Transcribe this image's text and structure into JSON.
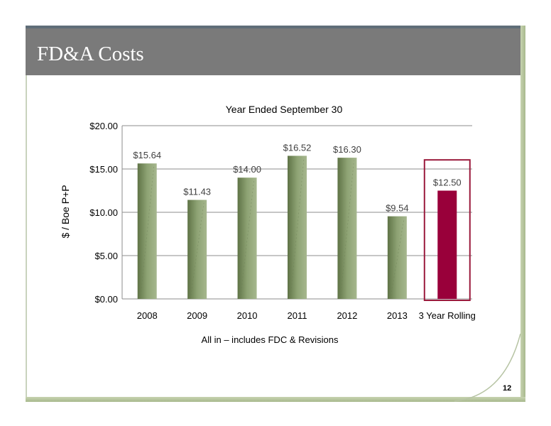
{
  "slide": {
    "title": "FD&A Costs",
    "page_number": "12",
    "note": "All in – includes FDC & Revisions"
  },
  "colors": {
    "title_bar": "#7a7a7a",
    "bar_green": "#7f9566",
    "bar_highlight": "#99003a",
    "highlight_box": "#9a1a3c"
  },
  "chart_data": {
    "type": "bar",
    "title": "Year Ended September 30",
    "ylabel": "$ / Boe P+P",
    "xlabel": "",
    "categories": [
      "2008",
      "2009",
      "2010",
      "2011",
      "2012",
      "2013",
      "3 Year Rolling"
    ],
    "values": [
      15.64,
      11.43,
      14.0,
      16.52,
      16.3,
      9.54,
      12.5
    ],
    "data_labels": [
      "$15.64",
      "$11.43",
      "$14.00",
      "$16.52",
      "$16.30",
      "$9.54",
      "$12.50"
    ],
    "ylim": [
      0,
      20
    ],
    "y_ticks": [
      0,
      5,
      10,
      15,
      20
    ],
    "y_tick_labels": [
      "$0.00",
      "$5.00",
      "$10.00",
      "$15.00",
      "$20.00"
    ],
    "highlighted_category": "3 Year Rolling",
    "grid": true,
    "legend": "none"
  }
}
